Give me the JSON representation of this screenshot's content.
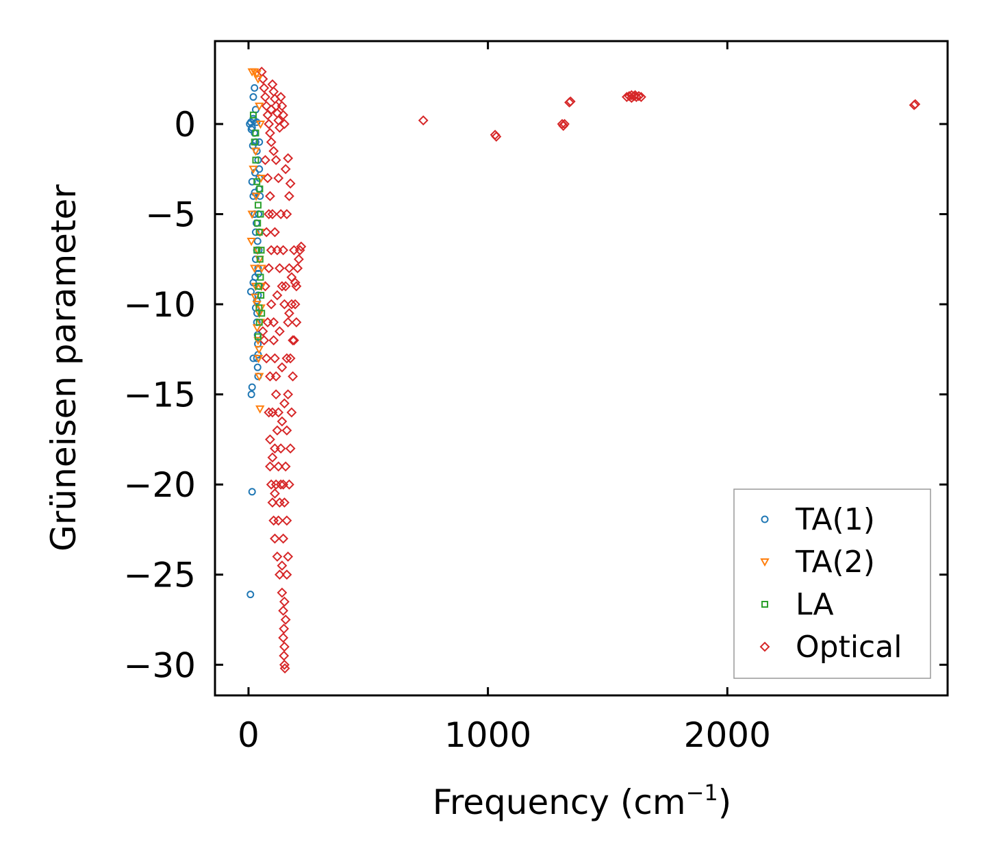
{
  "chart_data": {
    "type": "scatter",
    "title": "",
    "xlabel": "Frequency (cm",
    "xlabel_superscript": "−1",
    "xlabel_suffix": ")",
    "ylabel": "Grüneisen parameter",
    "xlim": [
      -140,
      2920
    ],
    "ylim": [
      -31.7,
      4.6
    ],
    "xticks": [
      0,
      1000,
      2000
    ],
    "xtick_labels": [
      "0",
      "1000",
      "2000"
    ],
    "yticks": [
      0,
      -5,
      -10,
      -15,
      -20,
      -25,
      -30
    ],
    "ytick_labels": [
      "0",
      "−5",
      "−10",
      "−15",
      "−20",
      "−25",
      "−30"
    ],
    "grid": false,
    "legend_position": "bottom-right",
    "series": [
      {
        "name": "TA(1)",
        "label": "TA(1)",
        "marker": "circle",
        "color": "#1f77b4",
        "points": [
          [
            5,
            0
          ],
          [
            10,
            0.1
          ],
          [
            15,
            -0.2
          ],
          [
            20,
            0.3
          ],
          [
            25,
            -0.5
          ],
          [
            30,
            -1
          ],
          [
            35,
            -1.5
          ],
          [
            40,
            -2
          ],
          [
            45,
            -2.5
          ],
          [
            20,
            1.5
          ],
          [
            25,
            2
          ],
          [
            30,
            0.8
          ],
          [
            15,
            -3.2
          ],
          [
            20,
            -4
          ],
          [
            25,
            -5
          ],
          [
            30,
            -6
          ],
          [
            35,
            -7
          ],
          [
            40,
            -8
          ],
          [
            45,
            -9
          ],
          [
            40,
            -9.5
          ],
          [
            35,
            -9.8
          ],
          [
            45,
            -3
          ],
          [
            42,
            -5
          ],
          [
            38,
            -6.5
          ],
          [
            30,
            -7.5
          ],
          [
            28,
            -8.5
          ],
          [
            10,
            -9.3
          ],
          [
            20,
            -8.8
          ],
          [
            30,
            -10.2
          ],
          [
            35,
            -11
          ],
          [
            38,
            -11.7
          ],
          [
            40,
            -12.8
          ],
          [
            35,
            -13
          ],
          [
            38,
            -13.5
          ],
          [
            40,
            -14
          ],
          [
            20,
            -13
          ],
          [
            15,
            -14.6
          ],
          [
            12,
            -15
          ],
          [
            15,
            -20.4
          ],
          [
            8,
            -26.1
          ],
          [
            45,
            -1
          ],
          [
            48,
            -4
          ],
          [
            46,
            -6
          ],
          [
            44,
            -3.6
          ],
          [
            43,
            -7
          ],
          [
            41,
            -8.3
          ],
          [
            33,
            -5.5
          ],
          [
            27,
            -2.7
          ],
          [
            36,
            -10.5
          ],
          [
            39,
            -12.2
          ],
          [
            22,
            0.2
          ],
          [
            34,
            0.1
          ],
          [
            12,
            -0.3
          ],
          [
            18,
            -1.2
          ],
          [
            26,
            -3.8
          ]
        ]
      },
      {
        "name": "TA(2)",
        "label": "TA(2)",
        "marker": "triangle-down",
        "color": "#ff7f0e",
        "points": [
          [
            15,
            2.9
          ],
          [
            25,
            2.9
          ],
          [
            35,
            2.8
          ],
          [
            40,
            2.5
          ],
          [
            45,
            1
          ],
          [
            50,
            0
          ],
          [
            20,
            -2.5
          ],
          [
            15,
            -5
          ],
          [
            12,
            -6.5
          ],
          [
            25,
            -8
          ],
          [
            30,
            -9
          ],
          [
            35,
            -10
          ],
          [
            45,
            -10.5
          ],
          [
            50,
            -11
          ],
          [
            40,
            -12
          ],
          [
            42,
            -13
          ],
          [
            45,
            -14
          ],
          [
            48,
            -15.8
          ],
          [
            52,
            -10.2
          ],
          [
            55,
            -8
          ],
          [
            38,
            -7
          ],
          [
            32,
            -4
          ],
          [
            48,
            -6
          ],
          [
            52,
            -3
          ],
          [
            44,
            -12.5
          ],
          [
            36,
            -11.3
          ],
          [
            28,
            -9.6
          ],
          [
            54,
            -9
          ],
          [
            46,
            -7.5
          ],
          [
            30,
            -1.5
          ]
        ]
      },
      {
        "name": "LA",
        "label": "LA",
        "marker": "square",
        "color": "#2ca02c",
        "points": [
          [
            20,
            0.5
          ],
          [
            25,
            -1
          ],
          [
            30,
            -2
          ],
          [
            35,
            -3.2
          ],
          [
            40,
            -4.5
          ],
          [
            45,
            -6
          ],
          [
            48,
            -7.5
          ],
          [
            50,
            -8.5
          ],
          [
            52,
            -9.5
          ],
          [
            55,
            -10.5
          ],
          [
            45,
            -11
          ],
          [
            40,
            -11.8
          ],
          [
            50,
            -5
          ],
          [
            35,
            -7
          ],
          [
            42,
            -9
          ],
          [
            47,
            -3.6
          ],
          [
            53,
            -7
          ],
          [
            38,
            -5.5
          ],
          [
            44,
            -10.2
          ],
          [
            30,
            -0.5
          ]
        ]
      },
      {
        "name": "Optical",
        "label": "Optical",
        "marker": "diamond",
        "color": "#d62728",
        "points": [
          [
            55,
            2.9
          ],
          [
            60,
            2.5
          ],
          [
            65,
            2
          ],
          [
            70,
            1.5
          ],
          [
            75,
            1
          ],
          [
            80,
            0.5
          ],
          [
            85,
            0
          ],
          [
            90,
            -0.5
          ],
          [
            95,
            -1
          ],
          [
            100,
            2.2
          ],
          [
            105,
            1.8
          ],
          [
            110,
            1.4
          ],
          [
            115,
            1
          ],
          [
            120,
            0.6
          ],
          [
            125,
            0.2
          ],
          [
            130,
            -0.2
          ],
          [
            135,
            1.5
          ],
          [
            140,
            1
          ],
          [
            145,
            0.5
          ],
          [
            150,
            0
          ],
          [
            70,
            -2
          ],
          [
            80,
            -3
          ],
          [
            90,
            -4
          ],
          [
            100,
            -5
          ],
          [
            110,
            -6
          ],
          [
            120,
            -7
          ],
          [
            130,
            -8
          ],
          [
            140,
            -9
          ],
          [
            150,
            -10
          ],
          [
            75,
            -6
          ],
          [
            85,
            -8
          ],
          [
            95,
            -10
          ],
          [
            105,
            -12
          ],
          [
            115,
            -14
          ],
          [
            125,
            -16
          ],
          [
            135,
            -18
          ],
          [
            145,
            -20
          ],
          [
            80,
            -11
          ],
          [
            90,
            -14
          ],
          [
            100,
            -16
          ],
          [
            110,
            -18
          ],
          [
            70,
            -9
          ],
          [
            90,
            -19
          ],
          [
            95,
            -20
          ],
          [
            100,
            -21
          ],
          [
            105,
            -22
          ],
          [
            110,
            -23
          ],
          [
            120,
            -24
          ],
          [
            130,
            -25
          ],
          [
            140,
            -26
          ],
          [
            145,
            -27
          ],
          [
            148,
            -28
          ],
          [
            150,
            -29
          ],
          [
            150,
            -30
          ],
          [
            152,
            -30.2
          ],
          [
            148,
            -29.5
          ],
          [
            145,
            -28.5
          ],
          [
            155,
            -27.5
          ],
          [
            150,
            -26.5
          ],
          [
            160,
            -25
          ],
          [
            165,
            -24
          ],
          [
            160,
            -22
          ],
          [
            170,
            -20
          ],
          [
            175,
            -18
          ],
          [
            180,
            -16
          ],
          [
            185,
            -14
          ],
          [
            190,
            -12
          ],
          [
            195,
            -10
          ],
          [
            200,
            -9
          ],
          [
            205,
            -8
          ],
          [
            210,
            -7.5
          ],
          [
            215,
            -7
          ],
          [
            220,
            -6.8
          ],
          [
            170,
            -4
          ],
          [
            175,
            -3.3
          ],
          [
            165,
            -1.9
          ],
          [
            155,
            -2.5
          ],
          [
            160,
            -5
          ],
          [
            170,
            -8
          ],
          [
            180,
            -10
          ],
          [
            185,
            -12
          ],
          [
            175,
            -13
          ],
          [
            165,
            -15
          ],
          [
            160,
            -17
          ],
          [
            155,
            -19
          ],
          [
            150,
            -21
          ],
          [
            145,
            -23
          ],
          [
            140,
            -24.5
          ],
          [
            130,
            -21
          ],
          [
            125,
            -19
          ],
          [
            120,
            -17
          ],
          [
            115,
            -15
          ],
          [
            110,
            -13
          ],
          [
            105,
            -11
          ],
          [
            95,
            -7
          ],
          [
            85,
            -5
          ],
          [
            60,
            -11.5
          ],
          [
            65,
            -12
          ],
          [
            75,
            -13
          ],
          [
            85,
            -16
          ],
          [
            90,
            -17.5
          ],
          [
            100,
            -18.5
          ],
          [
            110,
            -20.5
          ],
          [
            135,
            -5
          ],
          [
            145,
            -7
          ],
          [
            155,
            -9
          ],
          [
            165,
            -11
          ],
          [
            125,
            -3
          ],
          [
            115,
            -2
          ],
          [
            105,
            -1.5
          ],
          [
            95,
            0.8
          ],
          [
            120,
            -9.5
          ],
          [
            130,
            -11.5
          ],
          [
            140,
            -13.5
          ],
          [
            150,
            -15.5
          ],
          [
            160,
            -13
          ],
          [
            170,
            -10.5
          ],
          [
            180,
            -8.5
          ],
          [
            190,
            -7
          ],
          [
            200,
            -11
          ],
          [
            195,
            -8.8
          ],
          [
            140,
            -16.5
          ],
          [
            135,
            -20
          ],
          [
            125,
            -22
          ],
          [
            115,
            -20
          ],
          [
            730,
            0.2
          ],
          [
            1030,
            -0.6
          ],
          [
            1035,
            -0.7
          ],
          [
            1310,
            0
          ],
          [
            1315,
            -0.1
          ],
          [
            1320,
            0
          ],
          [
            1340,
            1.2
          ],
          [
            1345,
            1.25
          ],
          [
            1580,
            1.5
          ],
          [
            1590,
            1.55
          ],
          [
            1600,
            1.6
          ],
          [
            1610,
            1.55
          ],
          [
            1620,
            1.5
          ],
          [
            1630,
            1.55
          ],
          [
            1640,
            1.5
          ],
          [
            1600,
            1.45
          ],
          [
            1615,
            1.6
          ],
          [
            2780,
            1.05
          ],
          [
            2785,
            1.1
          ]
        ]
      }
    ]
  }
}
